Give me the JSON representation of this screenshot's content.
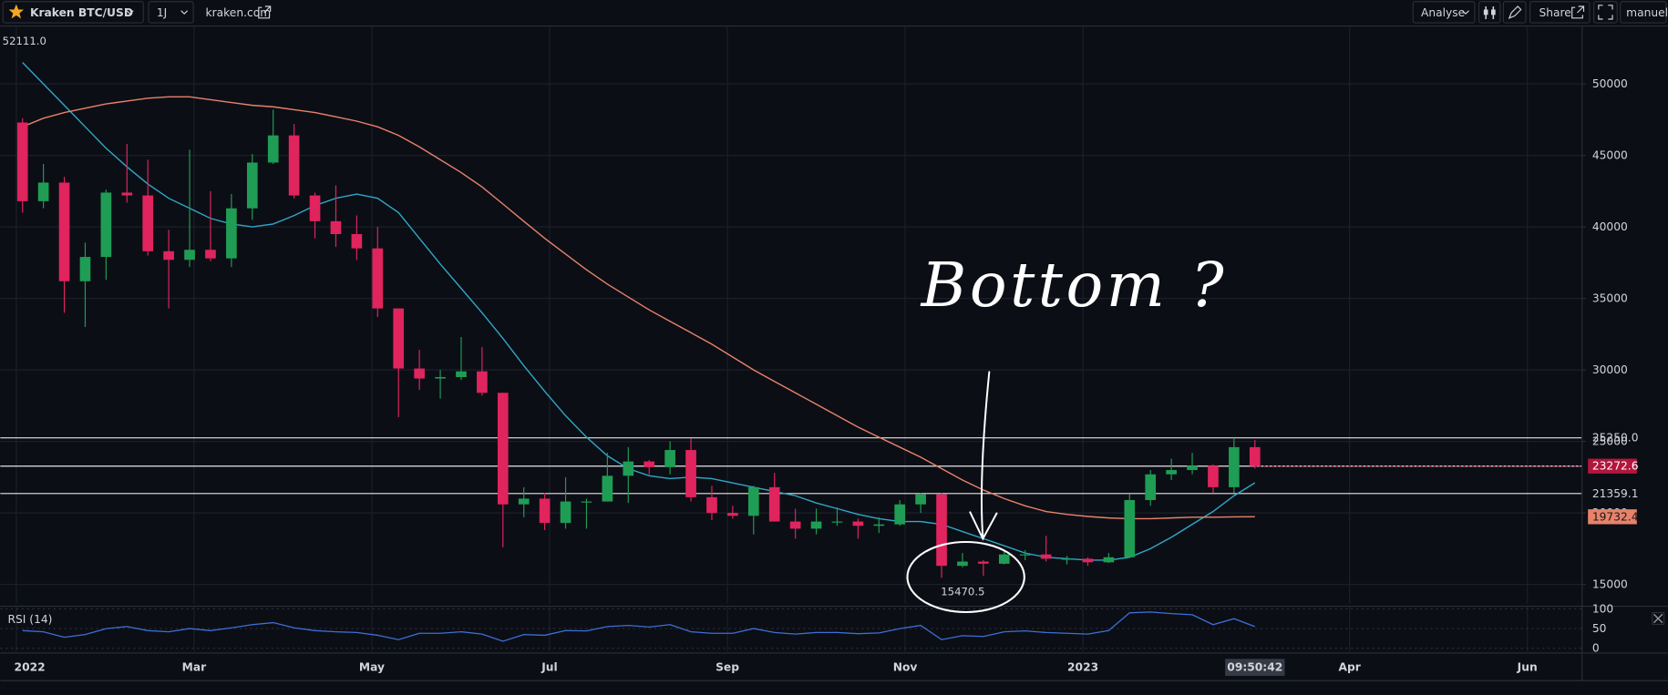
{
  "toolbar": {
    "symbol": "Kraken BTC/USD",
    "interval": "1J",
    "source": "kraken.com",
    "analyse": "Analyse",
    "share": "Share",
    "user": "manuel"
  },
  "chart_data": [
    {
      "type": "candlestick",
      "x": [
        0.07,
        0.305,
        0.54,
        0.775,
        1.01,
        1.245,
        1.48,
        1.715,
        1.95,
        2.185,
        2.42,
        2.655,
        2.89,
        3.125,
        3.36,
        3.595,
        3.83,
        4.065,
        4.3,
        4.535,
        4.77,
        5.005,
        5.24,
        5.475,
        5.71,
        5.945,
        6.18,
        6.415,
        6.65,
        6.885,
        7.12,
        7.355,
        7.59,
        7.825,
        8.06,
        8.295,
        8.53,
        8.765,
        9.0,
        9.235,
        9.47,
        9.705,
        9.94,
        10.175,
        10.41,
        10.645,
        10.88,
        11.115,
        11.35,
        11.585,
        11.82,
        12.055,
        12.29,
        12.525,
        12.76,
        12.995,
        13.23,
        13.465,
        13.7,
        13.935
      ],
      "open": [
        47300,
        41800,
        43100,
        36200,
        37900,
        42400,
        42200,
        38300,
        37700,
        38400,
        37800,
        41300,
        44500,
        46400,
        42200,
        40400,
        39500,
        38500,
        34300,
        30100,
        29400,
        29500,
        29900,
        28400,
        20600,
        21000,
        19300,
        20800,
        20800,
        22600,
        23600,
        23200,
        24400,
        21100,
        20000,
        19800,
        21800,
        19400,
        18900,
        19400,
        19400,
        19100,
        19200,
        20600,
        21300,
        16300,
        16600,
        16450,
        17100,
        17100,
        16800,
        16800,
        16550,
        16900,
        20900,
        22700,
        23000,
        23300,
        21800,
        24600
      ],
      "high": [
        47600,
        44400,
        43500,
        38900,
        42600,
        45800,
        44700,
        39800,
        45400,
        42500,
        42300,
        45100,
        48200,
        47200,
        42400,
        42900,
        40800,
        40000,
        34300,
        31400,
        30000,
        32300,
        31600,
        28400,
        21800,
        21400,
        22500,
        21000,
        24200,
        24600,
        23700,
        25000,
        25200,
        21900,
        20500,
        21900,
        22800,
        20300,
        20300,
        20400,
        19600,
        19700,
        20900,
        21400,
        21400,
        17200,
        16700,
        17400,
        17400,
        18400,
        17000,
        16900,
        17200,
        21300,
        23000,
        23800,
        24200,
        23400,
        25250,
        25100
      ],
      "low": [
        41000,
        41300,
        34000,
        33000,
        36300,
        41700,
        38000,
        34300,
        37200,
        37600,
        37200,
        40500,
        44400,
        42000,
        39200,
        38600,
        37700,
        33700,
        26700,
        28600,
        28000,
        29300,
        28200,
        17600,
        19700,
        18800,
        18900,
        18900,
        20800,
        20700,
        22700,
        22700,
        20800,
        19500,
        19600,
        18500,
        19400,
        18200,
        18500,
        19100,
        18200,
        18600,
        19100,
        20000,
        15470.5,
        16200,
        15600,
        16400,
        16700,
        16600,
        16400,
        16300,
        16500,
        16900,
        20500,
        22300,
        22700,
        21400,
        21400,
        23100
      ],
      "close": [
        41800,
        43100,
        36200,
        37900,
        42400,
        42200,
        38300,
        37700,
        38400,
        37800,
        41300,
        44500,
        46400,
        42200,
        40400,
        39500,
        38500,
        34300,
        30100,
        29400,
        29500,
        29900,
        28400,
        20600,
        21000,
        19300,
        20800,
        20800,
        22600,
        23600,
        23200,
        24400,
        21100,
        20000,
        19800,
        21800,
        19400,
        18900,
        19400,
        19400,
        19100,
        19200,
        20600,
        21300,
        16300,
        16600,
        16450,
        17100,
        17100,
        16800,
        16800,
        16550,
        16900,
        20900,
        22700,
        23000,
        23300,
        21800,
        24600,
        23272.6
      ],
      "up_color": "#1f9d55",
      "down_color": "#e0245e",
      "last_price_color": "#b2163c",
      "overlays": [
        {
          "color": "#2fa8c6",
          "values": [
            51500,
            50000,
            48500,
            47000,
            45500,
            44200,
            43000,
            42000,
            41300,
            40600,
            40200,
            40000,
            40200,
            40800,
            41500,
            42000,
            42300,
            42000,
            41000,
            39200,
            37400,
            35700,
            34000,
            32200,
            30300,
            28500,
            26800,
            25300,
            24000,
            23100,
            22600,
            22400,
            22500,
            22400,
            22100,
            21800,
            21500,
            21200,
            20700,
            20300,
            19900,
            19600,
            19400,
            19400,
            19200,
            18700,
            18200,
            17700,
            17200,
            16900,
            16800,
            16700,
            16700,
            16900,
            17500,
            18300,
            19200,
            20100,
            21200,
            22100
          ]
        },
        {
          "color": "#e8826b",
          "values": [
            47000,
            47600,
            48000,
            48300,
            48600,
            48800,
            49000,
            49100,
            49100,
            48900,
            48700,
            48500,
            48400,
            48200,
            48000,
            47700,
            47400,
            47000,
            46400,
            45600,
            44700,
            43800,
            42800,
            41600,
            40400,
            39200,
            38100,
            37000,
            36000,
            35100,
            34200,
            33400,
            32600,
            31800,
            30900,
            30000,
            29200,
            28400,
            27600,
            26800,
            26000,
            25300,
            24600,
            23900,
            23100,
            22300,
            21600,
            21000,
            20500,
            20100,
            19900,
            19750,
            19650,
            19600,
            19600,
            19650,
            19700,
            19700,
            19720,
            19732.4
          ]
        }
      ],
      "levels": [
        {
          "value": 25250,
          "label": "25250.0"
        },
        21359.1
      ],
      "high_marker": {
        "value": 52111,
        "label": "52111.0"
      },
      "annotations": [
        "Bottom ?"
      ],
      "last_time": "09:50:42",
      "xlim": [
        -0.18,
        17.61
      ],
      "xticks": [
        {
          "value": 0,
          "label": "2022"
        },
        {
          "value": 2,
          "label": "Mar"
        },
        {
          "value": 4,
          "label": "May"
        },
        {
          "value": 6,
          "label": "Jul"
        },
        {
          "value": 8,
          "label": "Sep"
        },
        {
          "value": 10,
          "label": "Nov"
        },
        {
          "value": 12,
          "label": "2023"
        },
        {
          "value": 15,
          "label": "Apr"
        },
        {
          "value": 17,
          "label": "Jun"
        }
      ],
      "ylim": [
        13660,
        54010
      ],
      "yticks": [
        15000,
        20000,
        25000,
        30000,
        35000,
        40000,
        45000,
        50000
      ],
      "grid": true
    },
    {
      "type": "line",
      "title": "RSI (14)",
      "color": "#3d6fd6",
      "values": [
        45,
        42,
        28,
        35,
        50,
        55,
        45,
        42,
        50,
        45,
        52,
        60,
        65,
        52,
        45,
        42,
        40,
        33,
        22,
        38,
        38,
        42,
        36,
        18,
        35,
        33,
        45,
        44,
        55,
        58,
        54,
        60,
        42,
        38,
        38,
        50,
        40,
        36,
        40,
        40,
        37,
        39,
        50,
        58,
        22,
        32,
        30,
        42,
        44,
        40,
        38,
        36,
        45,
        90,
        92,
        88,
        85,
        60,
        75,
        55
      ],
      "ylim": [
        -8,
        108
      ],
      "yticks": [
        0,
        50,
        100
      ],
      "grid": true
    }
  ]
}
